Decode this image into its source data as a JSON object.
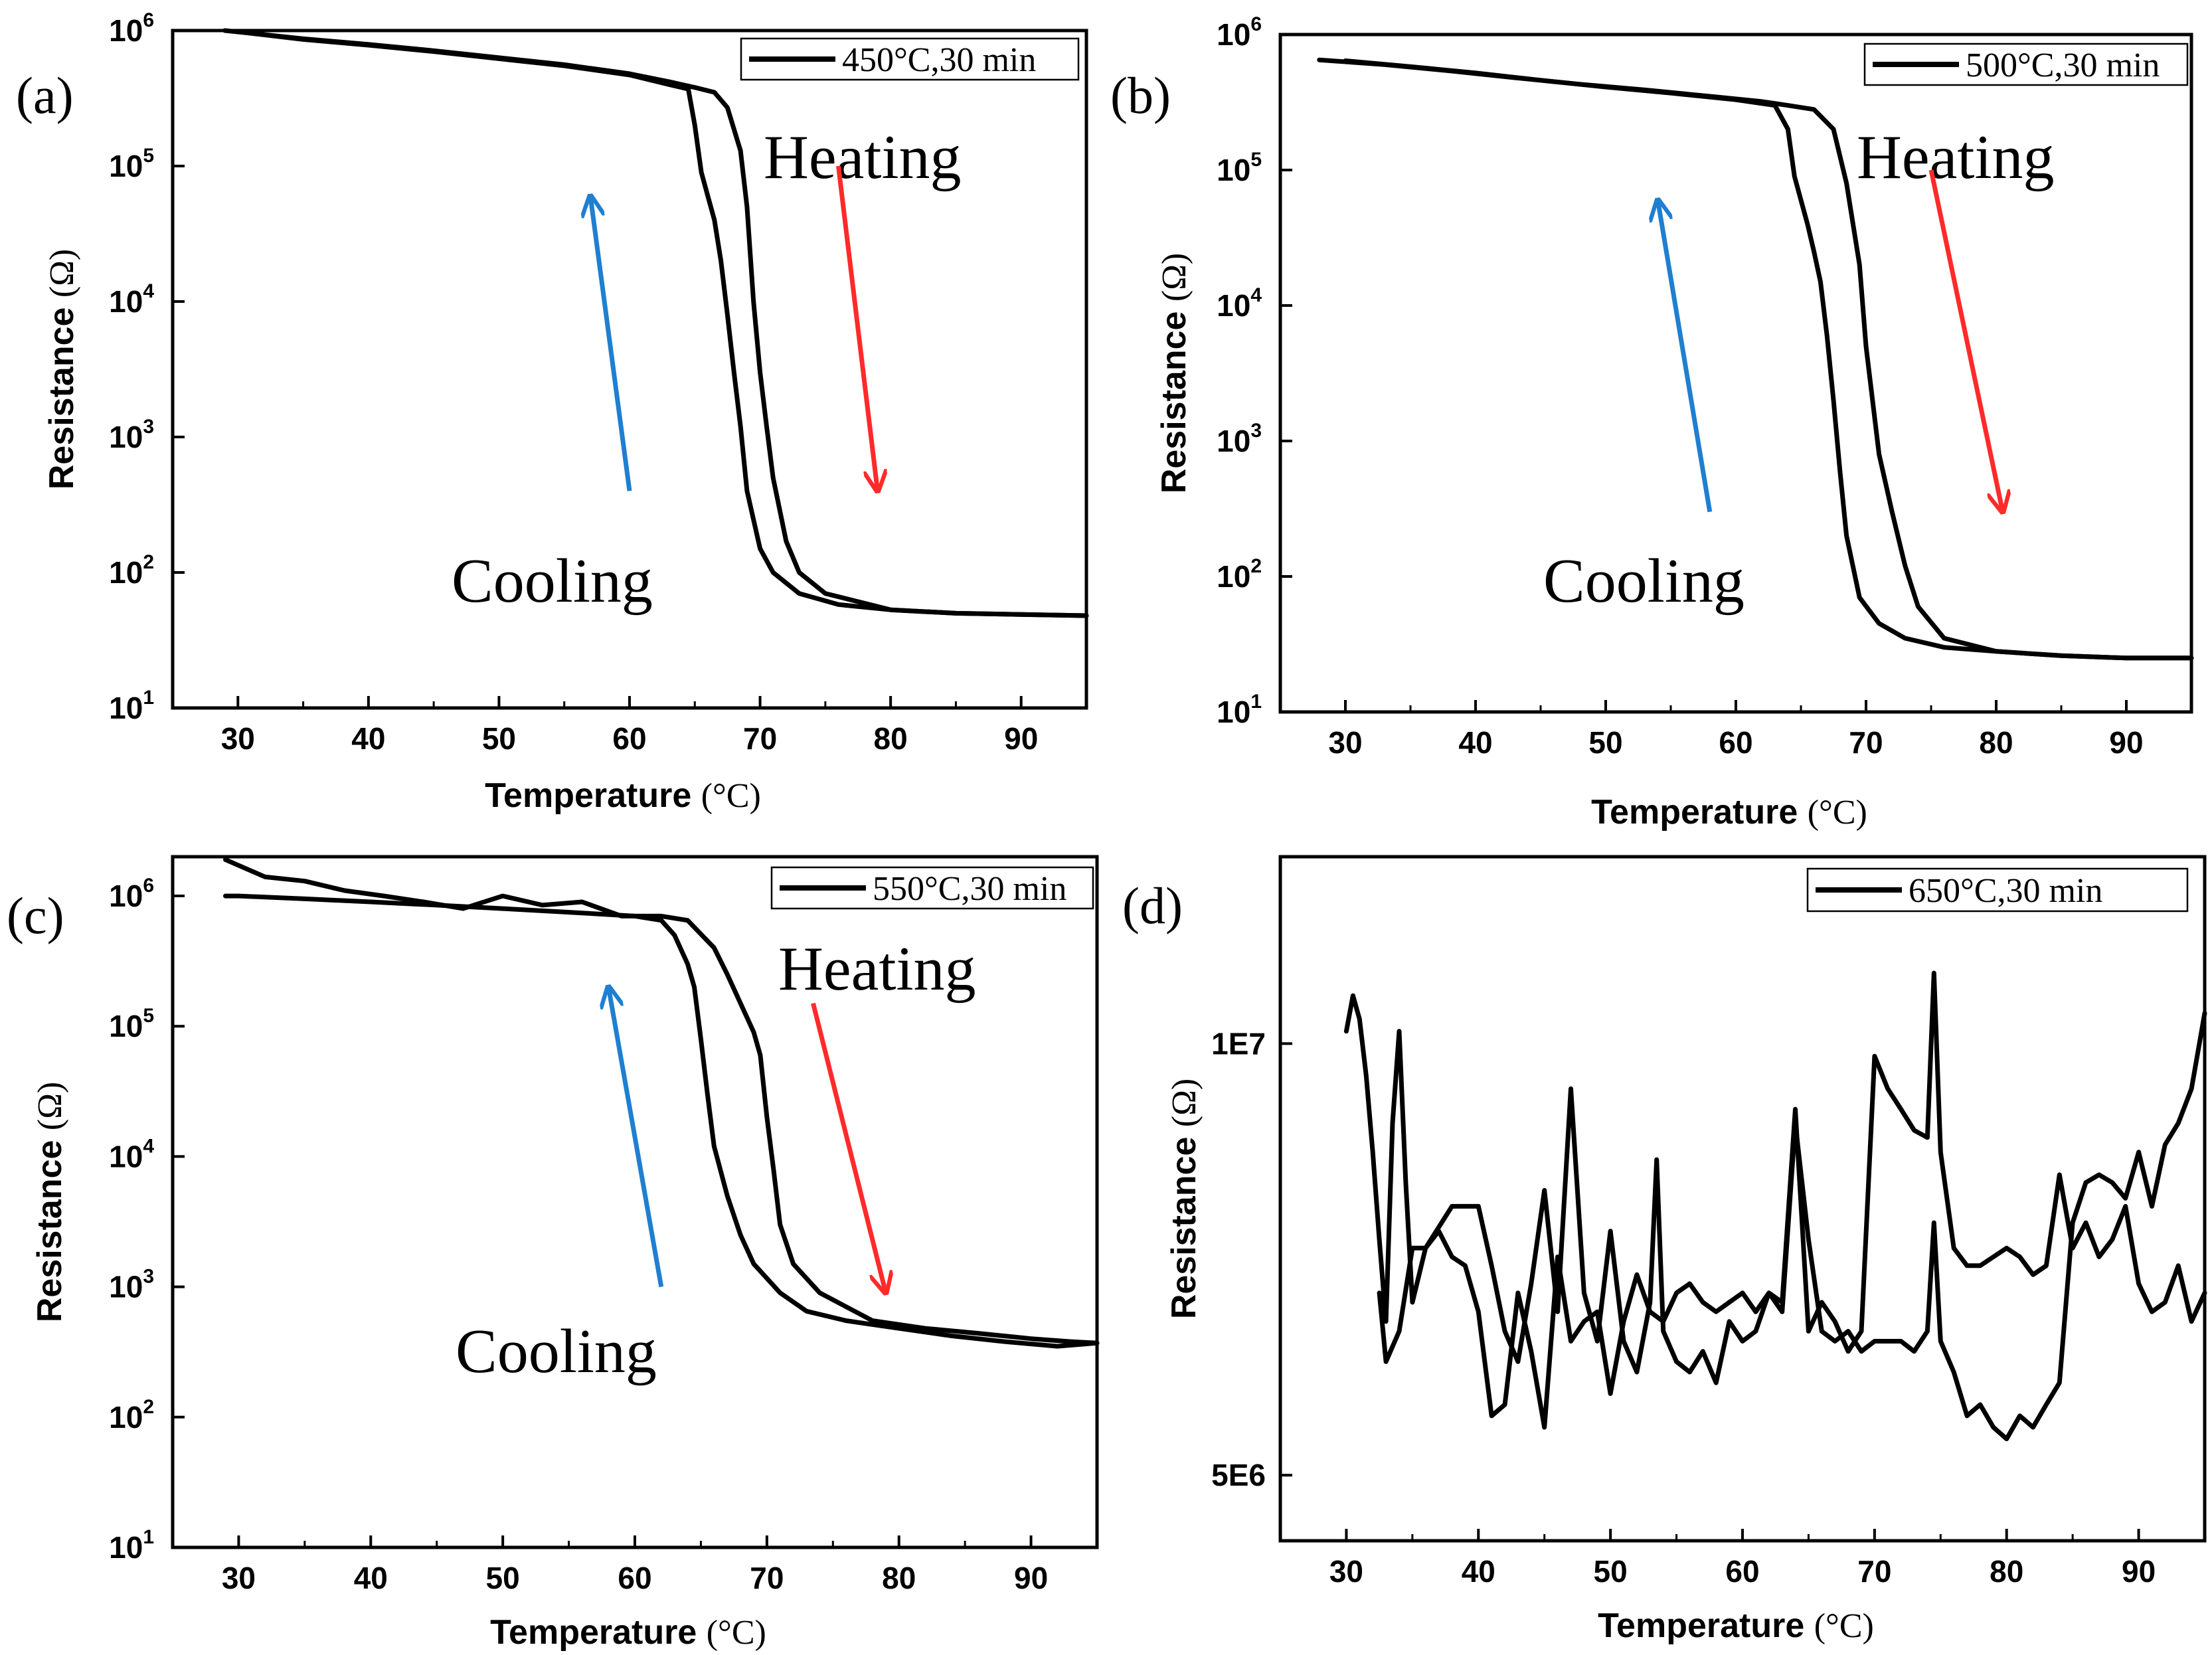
{
  "chart_data": [
    {
      "panel": "(a)",
      "type": "line",
      "legend": "450°C,30 min",
      "xlabel": "Temperature",
      "xunit": "(°C)",
      "ylabel": "Resistance",
      "yunit": "(Ω)",
      "yscale": "log",
      "xlim": [
        25,
        95
      ],
      "ylim": [
        10,
        1000000
      ],
      "xticks": [
        30,
        40,
        50,
        60,
        70,
        80,
        90
      ],
      "ytick_exponents": [
        1,
        2,
        3,
        4,
        5,
        6
      ],
      "annotations": {
        "heating": "Heating",
        "cooling": "Cooling"
      },
      "arrows": {
        "heating": {
          "from": [
            76,
            100000
          ],
          "to": [
            79,
            400
          ],
          "color": "#ff2a2a"
        },
        "cooling": {
          "from": [
            60,
            400
          ],
          "to": [
            57,
            60000
          ],
          "color": "#1f7fd0"
        }
      },
      "series": [
        {
          "name": "Heating",
          "x": [
            29,
            35,
            40,
            45,
            50,
            55,
            60,
            63,
            65,
            66.5,
            67.5,
            68.5,
            69,
            69.5,
            70,
            70.5,
            71,
            72,
            73,
            75,
            80,
            85,
            90,
            95
          ],
          "y": [
            1000000,
            870000,
            790000,
            710000,
            630000,
            560000,
            480000,
            420000,
            380000,
            350000,
            270000,
            130000,
            50000,
            10000,
            3000,
            1200,
            500,
            170,
            100,
            70,
            53,
            50,
            49,
            48
          ]
        },
        {
          "name": "Cooling",
          "x": [
            95,
            90,
            85,
            80,
            76,
            73,
            71,
            70,
            69,
            68.5,
            68,
            67.5,
            67,
            66.5,
            66,
            65.5,
            65,
            64.5,
            63,
            60,
            55,
            50,
            45,
            40,
            35,
            30
          ],
          "y": [
            48,
            49,
            50,
            53,
            58,
            70,
            100,
            150,
            400,
            1200,
            3000,
            8000,
            20000,
            40000,
            60000,
            90000,
            200000,
            370000,
            400000,
            470000,
            550000,
            620000,
            700000,
            780000,
            860000,
            980000
          ]
        }
      ]
    },
    {
      "panel": "(b)",
      "type": "line",
      "legend": "500°C,30 min",
      "xlabel": "Temperature",
      "xunit": "(°C)",
      "ylabel": "Resistance",
      "yunit": "(Ω)",
      "yscale": "log",
      "xlim": [
        25,
        95
      ],
      "ylim": [
        10,
        1000000
      ],
      "xticks": [
        30,
        40,
        50,
        60,
        70,
        80,
        90
      ],
      "ytick_exponents": [
        1,
        2,
        3,
        4,
        5,
        6
      ],
      "annotations": {
        "heating": "Heating",
        "cooling": "Cooling"
      },
      "arrows": {
        "heating": {
          "from": [
            75,
            100000
          ],
          "to": [
            80.5,
            300
          ],
          "color": "#ff2a2a"
        },
        "cooling": {
          "from": [
            58,
            300
          ],
          "to": [
            54,
            60000
          ],
          "color": "#1f7fd0"
        }
      },
      "series": [
        {
          "name": "Heating",
          "x": [
            28,
            33,
            38,
            43,
            48,
            53,
            58,
            62,
            64,
            66,
            67.5,
            68.5,
            69.5,
            70,
            70.5,
            71,
            72,
            73,
            74,
            76,
            80,
            85,
            90,
            95
          ],
          "y": [
            650000,
            600000,
            540000,
            480000,
            430000,
            390000,
            350000,
            320000,
            300000,
            280000,
            200000,
            80000,
            20000,
            5000,
            2000,
            800,
            300,
            120,
            60,
            35,
            28,
            26,
            25,
            25
          ]
        },
        {
          "name": "Cooling",
          "x": [
            95,
            90,
            85,
            80,
            76,
            73,
            71,
            69.5,
            68.5,
            68,
            67.5,
            67,
            66.5,
            66,
            65.5,
            65,
            64.5,
            64,
            63,
            60,
            55,
            50,
            45,
            40,
            35,
            30
          ],
          "y": [
            25,
            25,
            26,
            28,
            30,
            35,
            45,
            70,
            200,
            600,
            2000,
            6000,
            15000,
            25000,
            40000,
            60000,
            90000,
            200000,
            300000,
            330000,
            370000,
            410000,
            460000,
            520000,
            580000,
            640000
          ]
        }
      ]
    },
    {
      "panel": "(c)",
      "type": "line",
      "legend": "550°C,30 min",
      "xlabel": "Temperature",
      "xunit": "(°C)",
      "ylabel": "Resistance",
      "yunit": "(Ω)",
      "yscale": "log",
      "xlim": [
        25,
        95
      ],
      "ylim": [
        10,
        2000000
      ],
      "xticks": [
        30,
        40,
        50,
        60,
        70,
        80,
        90
      ],
      "ytick_exponents": [
        1,
        2,
        3,
        4,
        5,
        6
      ],
      "annotations": {
        "heating": "Heating",
        "cooling": "Cooling"
      },
      "arrows": {
        "heating": {
          "from": [
            73.5,
            150000
          ],
          "to": [
            79,
            900
          ],
          "color": "#ff2a2a"
        },
        "cooling": {
          "from": [
            62,
            1000
          ],
          "to": [
            58,
            200000
          ],
          "color": "#1f7fd0"
        }
      },
      "series": [
        {
          "name": "Heating",
          "x": [
            29,
            32,
            35,
            38,
            41,
            44,
            47,
            50,
            53,
            56,
            59,
            62,
            64,
            66,
            67,
            68,
            69,
            69.5,
            70,
            70.5,
            71,
            72,
            74,
            78,
            82,
            86,
            90,
            93,
            95
          ],
          "y": [
            1900000,
            1400000,
            1300000,
            1100000,
            1000000,
            900000,
            800000,
            1000000,
            850000,
            900000,
            700000,
            700000,
            650000,
            400000,
            250000,
            150000,
            90000,
            60000,
            20000,
            8000,
            3000,
            1500,
            900,
            550,
            480,
            440,
            400,
            380,
            370
          ]
        },
        {
          "name": "Cooling",
          "x": [
            95,
            92,
            88,
            84,
            80,
            76,
            73,
            71,
            69,
            68,
            67,
            66,
            65.5,
            65,
            64.5,
            64,
            63,
            62,
            60,
            55,
            50,
            45,
            40,
            35,
            30,
            29
          ],
          "y": [
            370,
            350,
            380,
            420,
            480,
            550,
            650,
            900,
            1500,
            2500,
            5000,
            12000,
            30000,
            80000,
            200000,
            300000,
            500000,
            650000,
            700000,
            750000,
            800000,
            850000,
            900000,
            950000,
            1000000,
            1000000
          ]
        }
      ]
    },
    {
      "panel": "(d)",
      "type": "line",
      "legend": "650°C,30 min",
      "xlabel": "Temperature",
      "xunit": "(°C)",
      "ylabel": "Resistance",
      "yunit": "(Ω)",
      "yscale": "log",
      "xlim": [
        25,
        95
      ],
      "ylim": [
        4500000,
        13500000
      ],
      "xticks": [
        30,
        40,
        50,
        60,
        70,
        80,
        90
      ],
      "yticks": [
        5000000,
        10000000
      ],
      "ytick_labels": [
        "5E6",
        "1E7"
      ],
      "series": [
        {
          "name": "Heating",
          "x": [
            30,
            30.5,
            31,
            31.5,
            32,
            32.5,
            33,
            33.5,
            34,
            34.5,
            35,
            36,
            38,
            40,
            41,
            42,
            43,
            44,
            45,
            46,
            47,
            48,
            49,
            50,
            51,
            52,
            53,
            53.5,
            54,
            55,
            56,
            57,
            58,
            59,
            60,
            61,
            62,
            63,
            64,
            65,
            66,
            67,
            68,
            69,
            70,
            71,
            72,
            73,
            74,
            74.5,
            75,
            76,
            77,
            78,
            79,
            80,
            81,
            82,
            83,
            84,
            85,
            86,
            87,
            88,
            89,
            90,
            91,
            92,
            93,
            94,
            95
          ],
          "y": [
            10200000,
            10800000,
            10400000,
            9500000,
            8400000,
            7300000,
            6400000,
            8800000,
            10200000,
            8000000,
            6600000,
            7200000,
            7700000,
            7700000,
            7000000,
            6300000,
            6000000,
            6800000,
            7900000,
            6500000,
            9300000,
            6700000,
            6200000,
            7400000,
            6200000,
            5900000,
            6600000,
            8300000,
            6300000,
            6000000,
            5900000,
            6100000,
            5800000,
            6400000,
            6200000,
            6300000,
            6700000,
            6500000,
            8800000,
            7300000,
            6300000,
            6200000,
            6300000,
            6100000,
            6200000,
            6200000,
            6200000,
            6100000,
            6300000,
            7500000,
            6200000,
            5900000,
            5500000,
            5600000,
            5400000,
            5300000,
            5500000,
            5400000,
            5600000,
            5800000,
            7500000,
            8000000,
            8100000,
            8000000,
            7800000,
            8400000,
            7700000,
            8500000,
            8800000,
            9300000,
            10500000
          ]
        },
        {
          "name": "Cooling",
          "x": [
            95,
            94,
            93,
            92,
            91,
            90,
            89,
            88,
            87,
            86,
            85,
            84,
            83,
            82,
            81,
            80,
            79,
            78,
            77,
            76,
            75,
            74.5,
            74,
            73,
            72,
            71,
            70,
            69,
            68,
            67,
            66,
            65,
            64,
            63,
            62,
            61,
            60,
            59,
            58,
            57,
            56,
            55,
            54,
            53,
            52,
            51,
            50,
            49,
            48,
            47,
            46,
            45,
            44,
            43,
            42,
            41,
            40,
            39,
            38,
            37,
            36,
            35,
            34,
            33,
            32.5
          ],
          "y": [
            6700000,
            6400000,
            7000000,
            6600000,
            6500000,
            6800000,
            7700000,
            7300000,
            7100000,
            7500000,
            7200000,
            8100000,
            7000000,
            6900000,
            7100000,
            7200000,
            7100000,
            7000000,
            7000000,
            7200000,
            8400000,
            11200000,
            8600000,
            8700000,
            9000000,
            9300000,
            9800000,
            6300000,
            6100000,
            6400000,
            6600000,
            6300000,
            9000000,
            6600000,
            6700000,
            6500000,
            6700000,
            6600000,
            6500000,
            6600000,
            6800000,
            6700000,
            6400000,
            6500000,
            6900000,
            6400000,
            5700000,
            6500000,
            6400000,
            6200000,
            7100000,
            5400000,
            6100000,
            6700000,
            5600000,
            5500000,
            6500000,
            7000000,
            7100000,
            7400000,
            7200000,
            7200000,
            6300000,
            6000000,
            6700000
          ]
        }
      ]
    }
  ]
}
